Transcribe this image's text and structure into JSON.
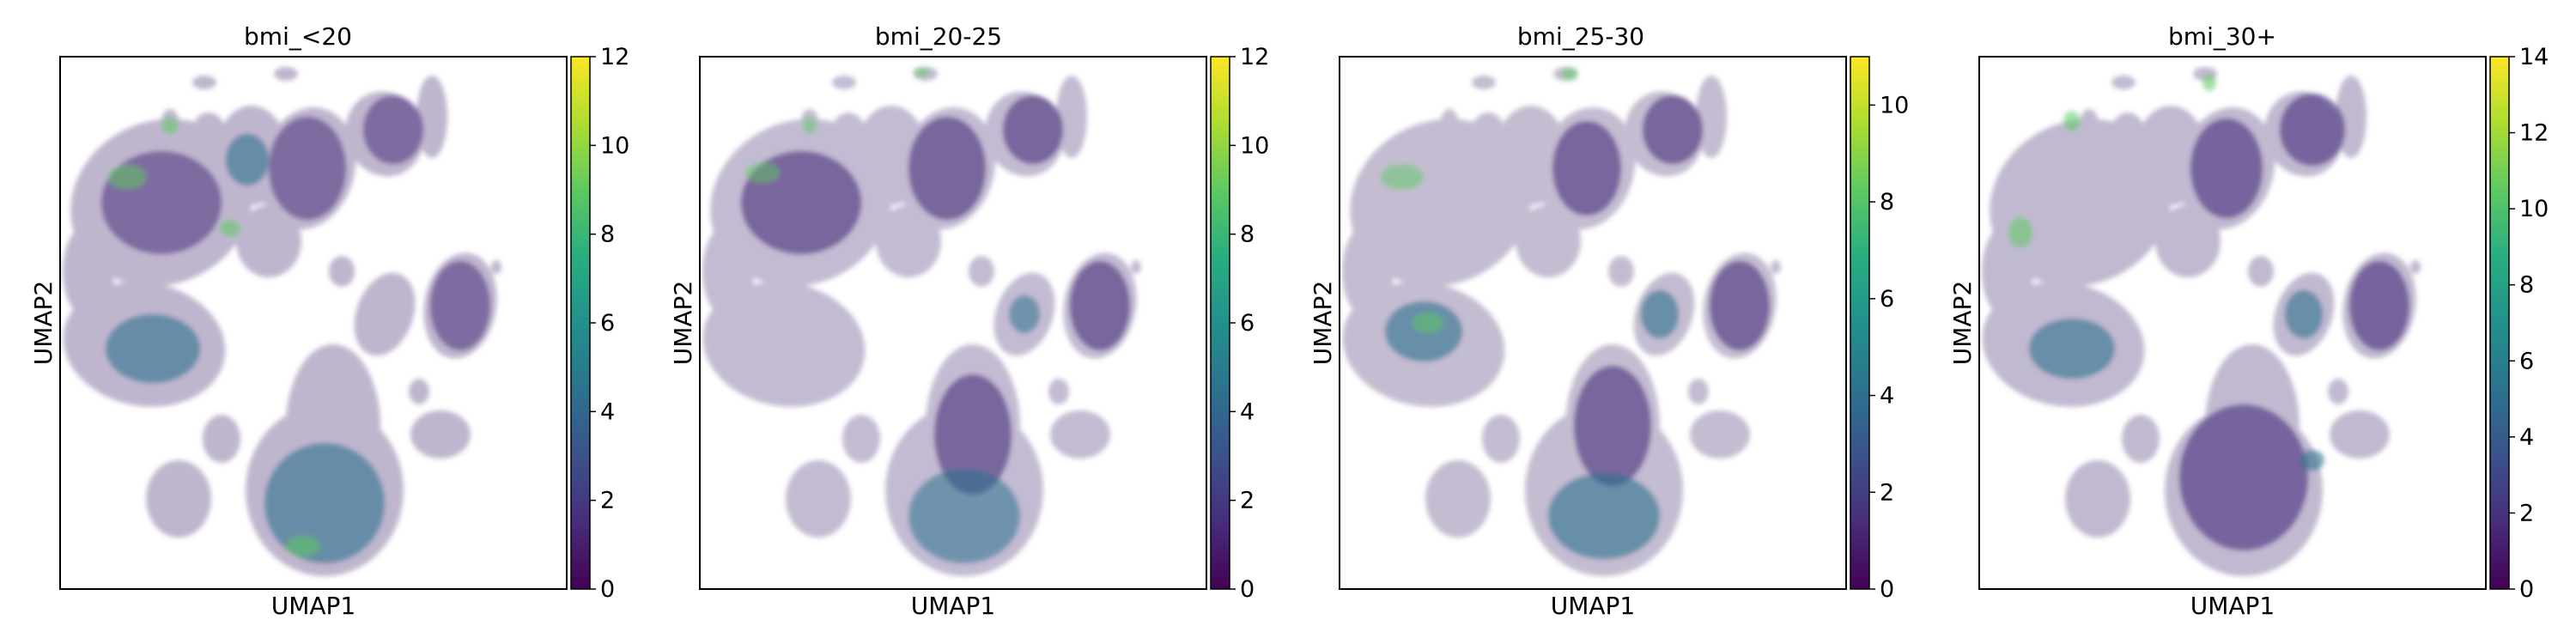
{
  "chart_data": [
    {
      "type": "scatter",
      "title": "bmi_<20",
      "xlabel": "UMAP1",
      "ylabel": "UMAP2",
      "colorbar": {
        "colormap": "viridis",
        "range": [
          0,
          12
        ],
        "ticks": [
          "0",
          "2",
          "4",
          "6",
          "8",
          "10",
          "12"
        ]
      }
    },
    {
      "type": "scatter",
      "title": "bmi_20-25",
      "xlabel": "UMAP1",
      "ylabel": "UMAP2",
      "colorbar": {
        "colormap": "viridis",
        "range": [
          0,
          12
        ],
        "ticks": [
          "0",
          "2",
          "4",
          "6",
          "8",
          "10",
          "12"
        ]
      }
    },
    {
      "type": "scatter",
      "title": "bmi_25-30",
      "xlabel": "UMAP1",
      "ylabel": "UMAP2",
      "colorbar": {
        "colormap": "viridis",
        "range": [
          0,
          11
        ],
        "ticks": [
          "0",
          "2",
          "4",
          "6",
          "8",
          "10"
        ]
      }
    },
    {
      "type": "scatter",
      "title": "bmi_30+",
      "xlabel": "UMAP1",
      "ylabel": "UMAP2",
      "colorbar": {
        "colormap": "viridis",
        "range": [
          0,
          14
        ],
        "ticks": [
          "0",
          "2",
          "4",
          "6",
          "8",
          "10",
          "12",
          "14"
        ]
      }
    }
  ]
}
